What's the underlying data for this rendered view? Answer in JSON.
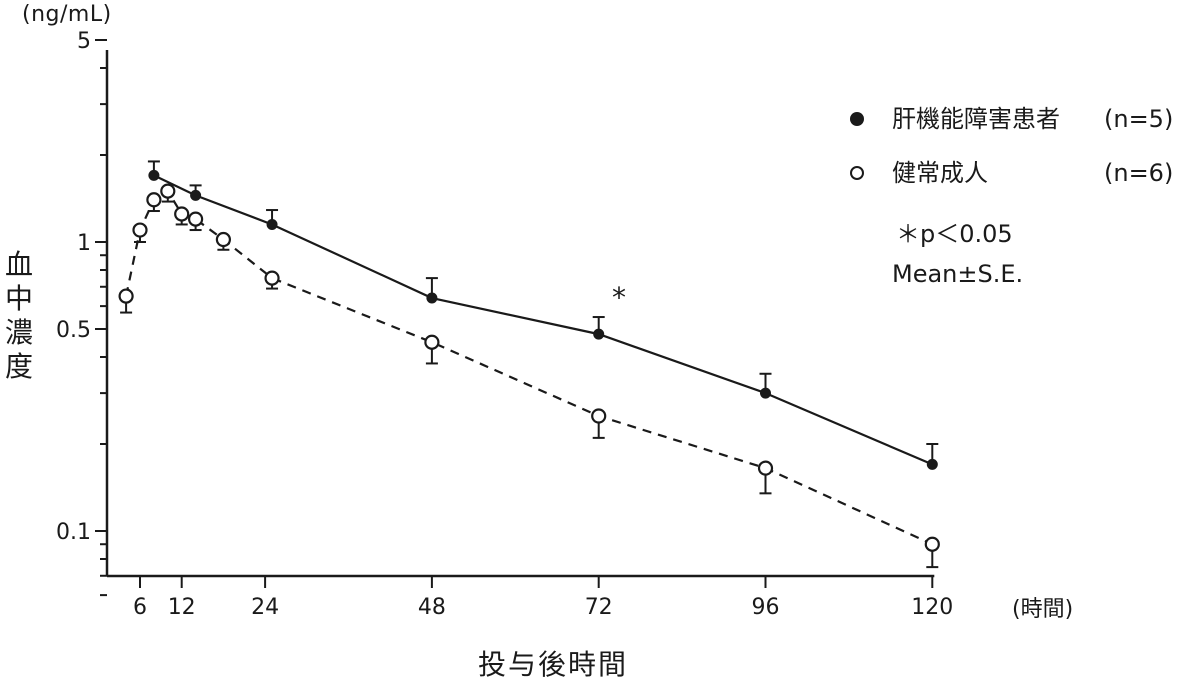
{
  "chart_data": {
    "type": "line",
    "y_unit": "(ng/mL)",
    "ylabel": "血中濃度",
    "xlabel": "投与後時間",
    "x_unit": "(時間)",
    "y_scale": "log",
    "ylim": [
      0.05,
      5
    ],
    "xlim": [
      2,
      120
    ],
    "x_ticks": [
      6,
      12,
      24,
      48,
      72,
      96,
      120
    ],
    "y_tick_labels": [
      {
        "value": 0.1,
        "label": "0.1"
      },
      {
        "value": 0.5,
        "label": "0.5"
      },
      {
        "value": 1,
        "label": "1"
      },
      {
        "value": 5,
        "label": "5"
      }
    ],
    "series": [
      {
        "name": "肝機能障害患者",
        "n_label": "(n=5)",
        "marker": "filled-circle",
        "line_style": "solid",
        "x": [
          8,
          14,
          25,
          48,
          72,
          96,
          120
        ],
        "y": [
          1.7,
          1.45,
          1.15,
          0.64,
          0.48,
          0.3,
          0.17
        ],
        "err": [
          0.2,
          0.12,
          0.14,
          0.11,
          0.07,
          0.05,
          0.03
        ]
      },
      {
        "name": "健常成人",
        "n_label": "(n=6)",
        "marker": "open-circle",
        "line_style": "dashed",
        "x": [
          4,
          6,
          8,
          10,
          12,
          14,
          18,
          25,
          48,
          72,
          96,
          120
        ],
        "y": [
          0.65,
          1.1,
          1.4,
          1.5,
          1.25,
          1.2,
          1.02,
          0.75,
          0.45,
          0.25,
          0.165,
          0.09
        ],
        "err": [
          0.08,
          0.1,
          0.12,
          0.12,
          0.1,
          0.1,
          0.08,
          0.06,
          0.07,
          0.04,
          0.03,
          0.015
        ]
      }
    ],
    "annotations": [
      {
        "text": "*",
        "x": 72,
        "series": "肝機能障害患者"
      }
    ],
    "significance_note": "＊p＜0.05",
    "stat_note": "Mean±S.E.",
    "legend_position": "top-right",
    "grid": false
  },
  "colors": {
    "ink": "#1a1a1a",
    "background": "#ffffff"
  }
}
